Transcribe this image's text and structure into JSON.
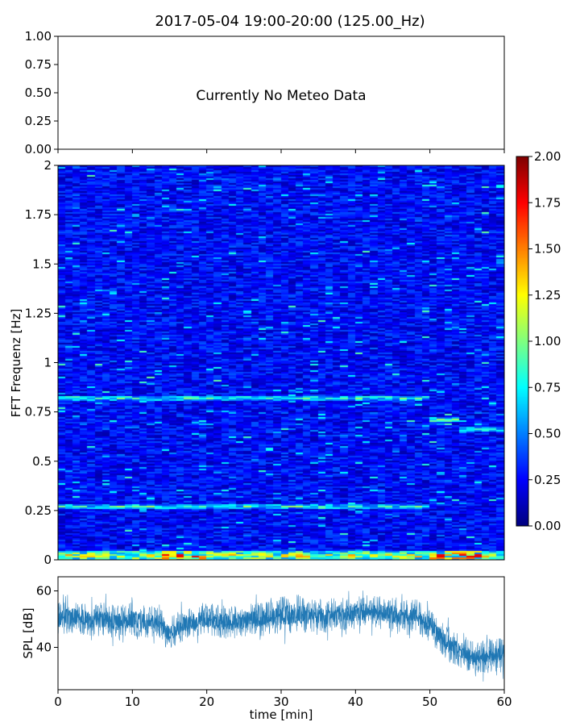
{
  "chart_data": [
    {
      "type": "text",
      "title": "2017-05-04 19:00-20:00 (125.00_Hz)",
      "message": "Currently No Meteo Data",
      "ylim": [
        0,
        1
      ],
      "yticks": [
        "0.00",
        "0.25",
        "0.50",
        "0.75",
        "1.00"
      ]
    },
    {
      "type": "heatmap",
      "ylabel": "FFT Frequenz [Hz]",
      "xlim": [
        0,
        60
      ],
      "ylim": [
        0,
        2
      ],
      "yticks": [
        "0",
        "0.25",
        "0.5",
        "0.75",
        "1",
        "1.25",
        "1.5",
        "1.75",
        "2"
      ],
      "colormap": "jet",
      "colorbar": {
        "range": [
          0,
          2
        ],
        "ticks": [
          "0.00",
          "0.25",
          "0.50",
          "0.75",
          "1.00",
          "1.25",
          "1.50",
          "1.75",
          "2.00"
        ]
      },
      "features": [
        {
          "freq": 0.02,
          "t_start": 0,
          "t_end": 60,
          "intensity": 1.2,
          "note": "strong low-frequency band with red peaks near 15-20 and 50-57 min"
        },
        {
          "freq": 0.27,
          "t_start": 0,
          "t_end": 50,
          "intensity": 0.85
        },
        {
          "freq": 0.82,
          "t_start": 0,
          "t_end": 50,
          "intensity": 0.9
        },
        {
          "freq": 0.71,
          "t_start": 50,
          "t_end": 54,
          "intensity": 1.0
        },
        {
          "freq": 0.66,
          "t_start": 54,
          "t_end": 60,
          "intensity": 0.8
        },
        {
          "freq": 1.51,
          "t_start": 59,
          "t_end": 60,
          "intensity": 0.7
        }
      ],
      "background_level": 0.25
    },
    {
      "type": "line",
      "xlabel": "time [min]",
      "ylabel": "SPL [dB]",
      "xlim": [
        0,
        60
      ],
      "ylim": [
        25,
        65
      ],
      "xticks": [
        "0",
        "10",
        "20",
        "30",
        "40",
        "50",
        "60"
      ],
      "yticks": [
        "40",
        "60"
      ],
      "color": "#1f77b4",
      "series": [
        {
          "x": [
            0,
            2,
            4,
            6,
            8,
            10,
            12,
            14,
            15,
            16,
            18,
            20,
            22,
            24,
            26,
            28,
            30,
            32,
            34,
            36,
            38,
            40,
            42,
            44,
            46,
            48,
            50,
            52,
            54,
            56,
            58,
            60
          ],
          "y": [
            50,
            51,
            50,
            50,
            49,
            50,
            49,
            48,
            44,
            47,
            49,
            50,
            49,
            49,
            50,
            50,
            51,
            52,
            51,
            51,
            52,
            52,
            53,
            52,
            51,
            51,
            48,
            42,
            39,
            36,
            37,
            38
          ],
          "spread": [
            6,
            6,
            6,
            6,
            6,
            6,
            6,
            6,
            6,
            6,
            6,
            6,
            6,
            6,
            6,
            6,
            7,
            7,
            6,
            6,
            6,
            6,
            6,
            6,
            6,
            6,
            6,
            6,
            6,
            6,
            6,
            6
          ]
        }
      ]
    }
  ]
}
